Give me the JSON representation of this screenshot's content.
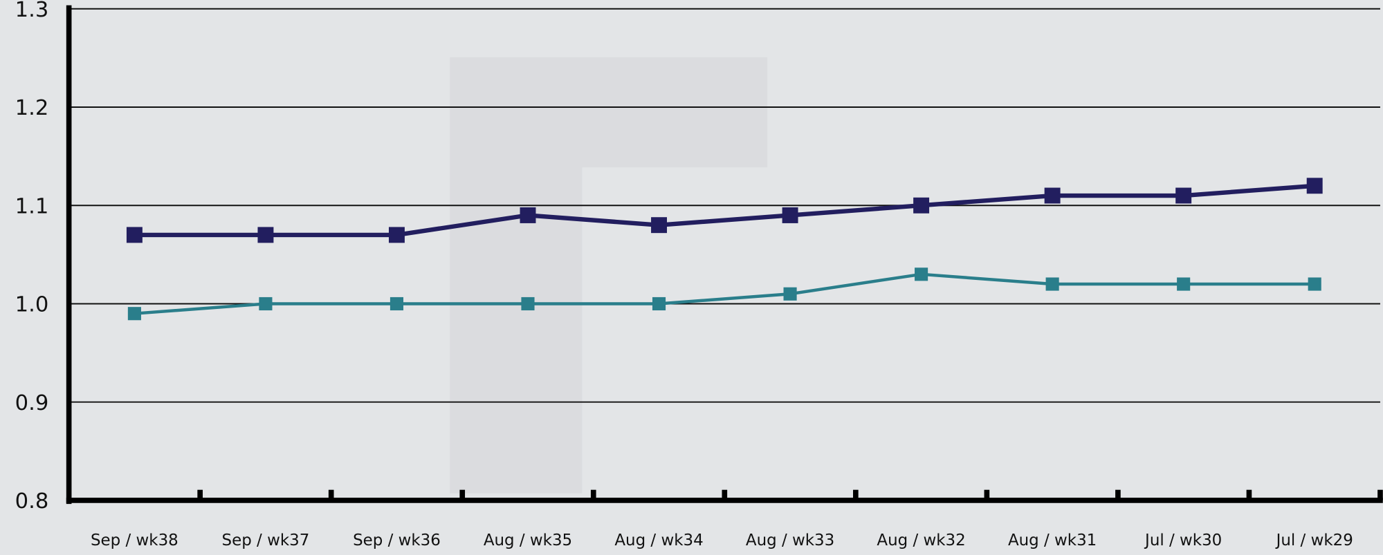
{
  "chart_data": {
    "type": "line",
    "categories": [
      "Sep / wk38",
      "Sep / wk37",
      "Sep / wk36",
      "Aug / wk35",
      "Aug / wk34",
      "Aug / wk33",
      "Aug / wk32",
      "Aug / wk31",
      "Jul / wk30",
      "Jul / wk29"
    ],
    "series": [
      {
        "color": "#221e5f",
        "values": [
          1.07,
          1.07,
          1.07,
          1.09,
          1.08,
          1.09,
          1.1,
          1.11,
          1.11,
          1.12
        ]
      },
      {
        "color": "#2a7e8b",
        "values": [
          0.99,
          1.0,
          1.0,
          1.0,
          1.0,
          1.01,
          1.03,
          1.02,
          1.02,
          1.02
        ]
      }
    ],
    "ylim": [
      0.8,
      1.3
    ],
    "yticks": [
      0.8,
      0.9,
      {
        "value": 1,
        "label": "1.0"
      },
      1.1,
      1.2,
      1.3
    ],
    "grid": true
  }
}
